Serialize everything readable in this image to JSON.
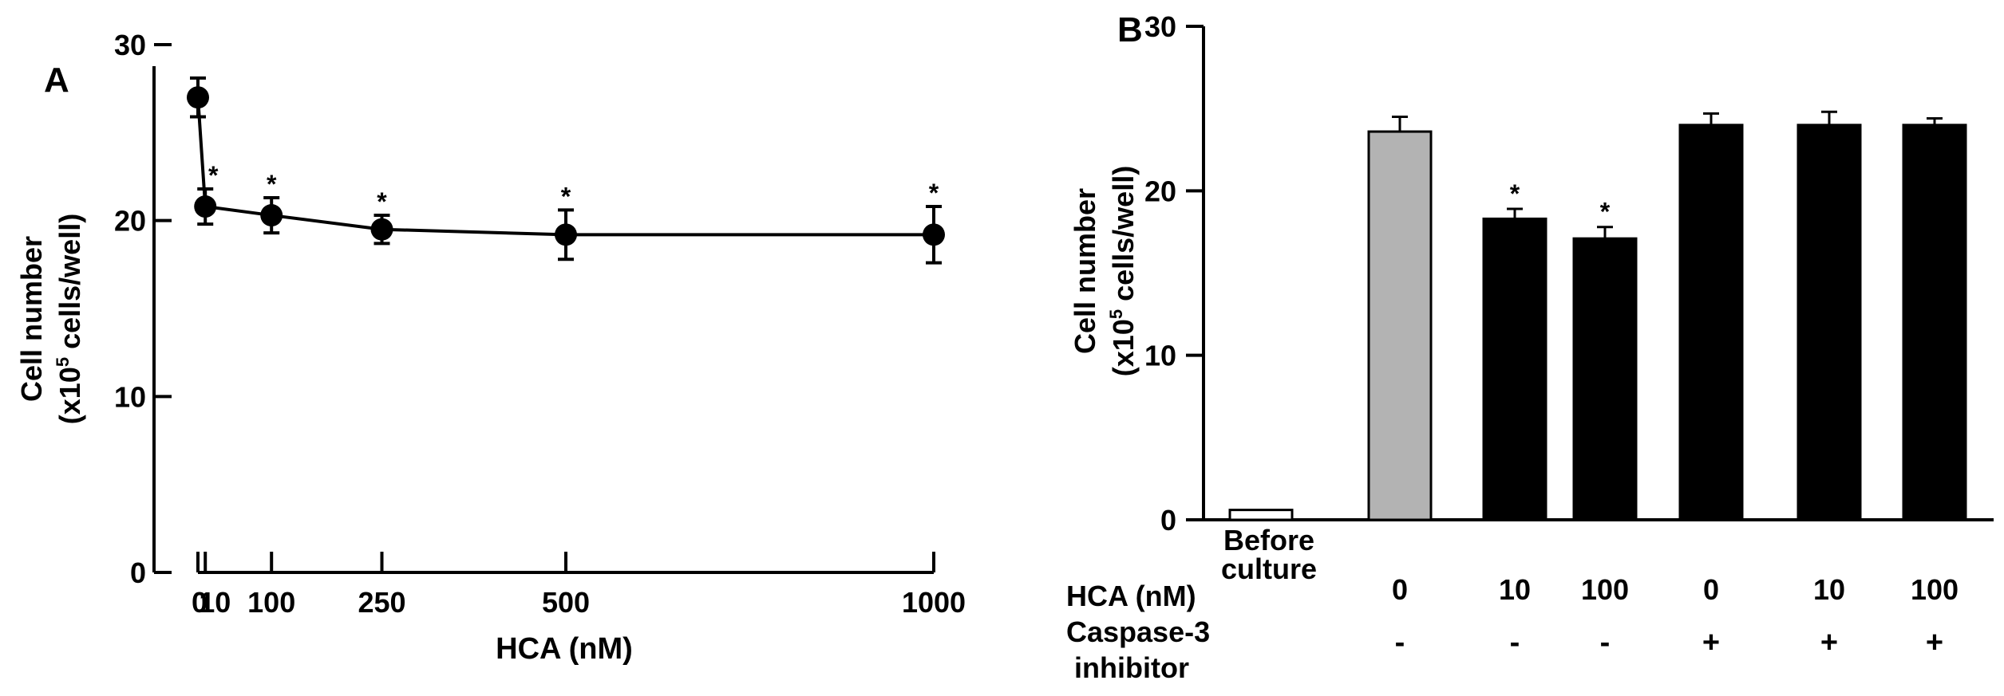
{
  "chart_data": [
    {
      "panel": "A",
      "type": "line",
      "ylabel_line1": "Cell number",
      "ylabel_line2_prefix": "(x10",
      "ylabel_line2_sup": "5",
      "ylabel_line2_suffix": " cells/well)",
      "xlabel": "HCA (nM)",
      "ylim": [
        0,
        30
      ],
      "xlim": [
        0,
        1000
      ],
      "yticks": [
        "0",
        "10",
        "20",
        "30"
      ],
      "xticks": [
        {
          "value": 0,
          "label": "0"
        },
        {
          "value": 10,
          "label": "10"
        },
        {
          "value": 100,
          "label": "100"
        },
        {
          "value": 250,
          "label": "250"
        },
        {
          "value": 500,
          "label": "500"
        },
        {
          "value": 1000,
          "label": "1000"
        }
      ],
      "series": [
        {
          "x": [
            0,
            10,
            100,
            250,
            500,
            1000
          ],
          "y": [
            27.0,
            20.8,
            20.3,
            19.5,
            19.2,
            19.2
          ],
          "error": [
            1.1,
            1.0,
            1.0,
            0.8,
            1.4,
            1.6
          ],
          "significance": [
            "",
            "*",
            "*",
            "*",
            "*",
            "*"
          ]
        }
      ]
    },
    {
      "panel": "B",
      "type": "bar",
      "ylabel_line1": "Cell number",
      "ylabel_line2_prefix": "(x10",
      "ylabel_line2_sup": "5",
      "ylabel_line2_suffix": " cells/well)",
      "ylim": [
        0,
        30
      ],
      "yticks": [
        "0",
        "10",
        "20",
        "30"
      ],
      "categories": [
        {
          "label_lines": [
            "Before",
            "culture"
          ],
          "hca": "",
          "inhibitor": ""
        },
        {
          "label_lines": [],
          "hca": "0",
          "inhibitor": "-"
        },
        {
          "label_lines": [],
          "hca": "10",
          "inhibitor": "-"
        },
        {
          "label_lines": [],
          "hca": "100",
          "inhibitor": "-"
        },
        {
          "label_lines": [],
          "hca": "0",
          "inhibitor": "+"
        },
        {
          "label_lines": [],
          "hca": "10",
          "inhibitor": "+"
        },
        {
          "label_lines": [],
          "hca": "100",
          "inhibitor": "+"
        }
      ],
      "values": [
        0.6,
        23.6,
        18.3,
        17.1,
        24.0,
        24.0,
        24.0
      ],
      "error": [
        0,
        0.9,
        0.6,
        0.7,
        0.7,
        0.8,
        0.4
      ],
      "significance": [
        "",
        "",
        "*",
        "*",
        "",
        "",
        ""
      ],
      "bar_colors": [
        "#ffffff",
        "#b3b3b3",
        "#000000",
        "#000000",
        "#000000",
        "#000000",
        "#000000"
      ],
      "row_labels": {
        "hca": "HCA (nM)",
        "inhibitor_line1": "Caspase-3",
        "inhibitor_line2": "inhibitor"
      }
    }
  ]
}
